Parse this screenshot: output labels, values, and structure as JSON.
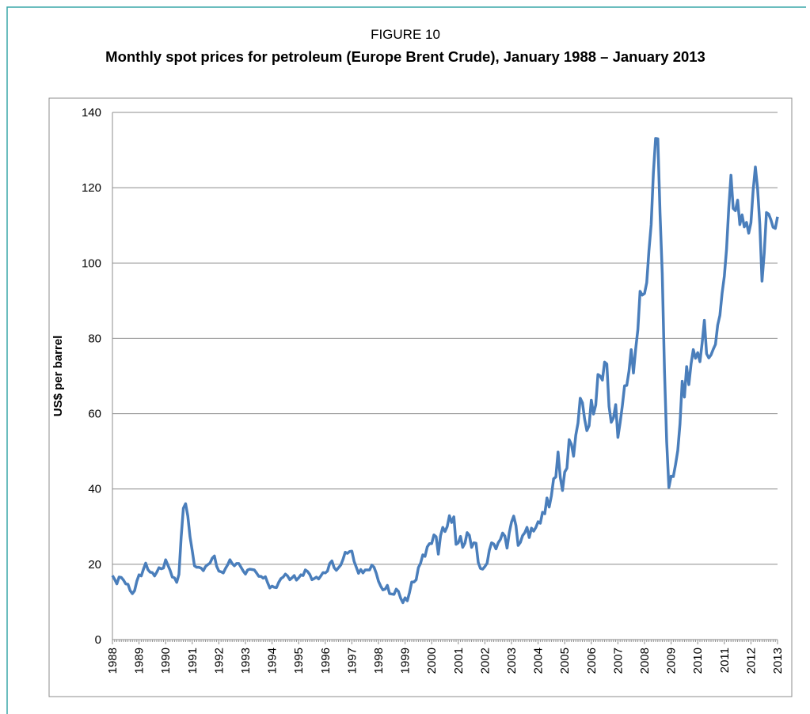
{
  "chart_data": {
    "type": "line",
    "figure_label": "FIGURE 10",
    "title": "Monthly spot prices for petroleum (Europe Brent Crude), January 1988 – January 2013",
    "y_label": "US$ per barrel",
    "categories": [
      "1988",
      null,
      null,
      null,
      null,
      null,
      null,
      null,
      null,
      null,
      null,
      null,
      "1989",
      null,
      null,
      null,
      null,
      null,
      null,
      null,
      null,
      null,
      null,
      null,
      "1990",
      null,
      null,
      null,
      null,
      null,
      null,
      null,
      null,
      null,
      null,
      null,
      "1991",
      null,
      null,
      null,
      null,
      null,
      null,
      null,
      null,
      null,
      null,
      null,
      "1992",
      null,
      null,
      null,
      null,
      null,
      null,
      null,
      null,
      null,
      null,
      null,
      "1993",
      null,
      null,
      null,
      null,
      null,
      null,
      null,
      null,
      null,
      null,
      null,
      "1994",
      null,
      null,
      null,
      null,
      null,
      null,
      null,
      null,
      null,
      null,
      null,
      "1995",
      null,
      null,
      null,
      null,
      null,
      null,
      null,
      null,
      null,
      null,
      null,
      "1996",
      null,
      null,
      null,
      null,
      null,
      null,
      null,
      null,
      null,
      null,
      null,
      "1997",
      null,
      null,
      null,
      null,
      null,
      null,
      null,
      null,
      null,
      null,
      null,
      "1998",
      null,
      null,
      null,
      null,
      null,
      null,
      null,
      null,
      null,
      null,
      null,
      "1999",
      null,
      null,
      null,
      null,
      null,
      null,
      null,
      null,
      null,
      null,
      null,
      "2000",
      null,
      null,
      null,
      null,
      null,
      null,
      null,
      null,
      null,
      null,
      null,
      "2001",
      null,
      null,
      null,
      null,
      null,
      null,
      null,
      null,
      null,
      null,
      null,
      "2002",
      null,
      null,
      null,
      null,
      null,
      null,
      null,
      null,
      null,
      null,
      null,
      "2003",
      null,
      null,
      null,
      null,
      null,
      null,
      null,
      null,
      null,
      null,
      null,
      "2004",
      null,
      null,
      null,
      null,
      null,
      null,
      null,
      null,
      null,
      null,
      null,
      "2005",
      null,
      null,
      null,
      null,
      null,
      null,
      null,
      null,
      null,
      null,
      null,
      "2006",
      null,
      null,
      null,
      null,
      null,
      null,
      null,
      null,
      null,
      null,
      null,
      "2007",
      null,
      null,
      null,
      null,
      null,
      null,
      null,
      null,
      null,
      null,
      null,
      "2008",
      null,
      null,
      null,
      null,
      null,
      null,
      null,
      null,
      null,
      null,
      null,
      "2009",
      null,
      null,
      null,
      null,
      null,
      null,
      null,
      null,
      null,
      null,
      null,
      "2010",
      null,
      null,
      null,
      null,
      null,
      null,
      null,
      null,
      null,
      null,
      null,
      "2011",
      null,
      null,
      null,
      null,
      null,
      null,
      null,
      null,
      null,
      null,
      null,
      "2012",
      null,
      null,
      null,
      null,
      null,
      null,
      null,
      null,
      null,
      null,
      null,
      "2013"
    ],
    "values": [
      17.0,
      16.0,
      14.8,
      16.6,
      16.5,
      15.8,
      14.8,
      14.7,
      13.0,
      12.2,
      13.0,
      15.5,
      17.2,
      16.9,
      18.7,
      20.3,
      18.6,
      17.9,
      17.8,
      16.9,
      17.9,
      19.1,
      18.8,
      19.0,
      21.2,
      19.8,
      18.4,
      16.6,
      16.4,
      15.2,
      17.3,
      27.2,
      34.9,
      36.1,
      32.8,
      27.3,
      23.6,
      19.6,
      19.2,
      19.2,
      19.0,
      18.3,
      19.4,
      19.9,
      20.3,
      21.6,
      22.2,
      19.5,
      18.2,
      18.0,
      17.7,
      18.9,
      19.9,
      21.2,
      20.2,
      19.6,
      20.2,
      20.2,
      19.2,
      18.2,
      17.4,
      18.5,
      18.7,
      18.6,
      18.5,
      17.7,
      16.8,
      16.8,
      16.3,
      16.7,
      15.1,
      13.7,
      14.2,
      13.9,
      13.8,
      15.2,
      16.2,
      16.6,
      17.4,
      16.9,
      15.9,
      16.4,
      17.0,
      15.8,
      16.4,
      17.2,
      17.0,
      18.5,
      18.1,
      17.3,
      15.9,
      16.2,
      16.6,
      16.1,
      16.9,
      17.8,
      17.7,
      18.2,
      20.2,
      20.9,
      19.1,
      18.4,
      19.1,
      19.8,
      21.3,
      23.2,
      22.9,
      23.4,
      23.5,
      20.8,
      19.2,
      17.6,
      18.6,
      17.7,
      18.5,
      18.5,
      18.5,
      19.8,
      19.2,
      17.6,
      15.5,
      14.2,
      13.2,
      13.4,
      14.4,
      12.2,
      12.1,
      12.0,
      13.4,
      12.8,
      11.0,
      9.8,
      11.1,
      10.3,
      12.5,
      15.3,
      15.3,
      15.9,
      19.1,
      20.3,
      22.5,
      22.1,
      24.6,
      25.5,
      25.5,
      27.8,
      27.3,
      22.7,
      27.6,
      29.8,
      28.7,
      30.0,
      32.9,
      31.1,
      32.6,
      25.3,
      25.7,
      27.4,
      24.5,
      25.6,
      28.4,
      27.7,
      24.5,
      25.7,
      25.6,
      20.5,
      18.9,
      18.7,
      19.4,
      20.3,
      23.7,
      25.7,
      25.4,
      24.1,
      25.7,
      26.6,
      28.3,
      27.5,
      24.3,
      28.4,
      31.2,
      32.8,
      30.3,
      25.0,
      25.8,
      27.6,
      28.4,
      29.8,
      27.1,
      29.6,
      28.8,
      29.8,
      31.3,
      30.9,
      33.8,
      33.4,
      37.6,
      35.2,
      38.2,
      42.7,
      43.2,
      49.8,
      43.1,
      39.6,
      44.5,
      45.5,
      53.1,
      51.9,
      48.7,
      54.3,
      57.5,
      64.1,
      62.9,
      58.5,
      55.5,
      56.8,
      63.6,
      59.9,
      62.3,
      70.4,
      70.0,
      68.9,
      73.7,
      73.2,
      61.9,
      57.7,
      58.9,
      62.4,
      53.7,
      57.6,
      62.1,
      67.4,
      67.5,
      71.3,
      77.0,
      70.8,
      77.1,
      82.3,
      92.5,
      91.5,
      91.9,
      94.8,
      103.3,
      110.2,
      123.9,
      133.1,
      133.0,
      113.2,
      97.2,
      71.6,
      52.5,
      40.4,
      43.4,
      43.3,
      46.5,
      50.2,
      57.3,
      68.6,
      64.4,
      72.5,
      67.7,
      73.2,
      77.0,
      74.7,
      76.2,
      73.8,
      78.8,
      84.8,
      75.9,
      74.8,
      75.6,
      77.1,
      78.4,
      83.5,
      86.1,
      92.0,
      96.5,
      103.7,
      114.6,
      123.3,
      114.5,
      113.9,
      116.7,
      110.2,
      112.8,
      109.6,
      110.8,
      107.9,
      110.7,
      119.3,
      125.5,
      119.8,
      110.3,
      95.2,
      102.6,
      113.4,
      113.0,
      111.5,
      109.5,
      109.2,
      112.3
    ],
    "color": "#4a7ebb",
    "ylim": [
      0,
      140
    ],
    "yticks": [
      0,
      20,
      40,
      60,
      80,
      100,
      120,
      140
    ],
    "grid": true
  }
}
